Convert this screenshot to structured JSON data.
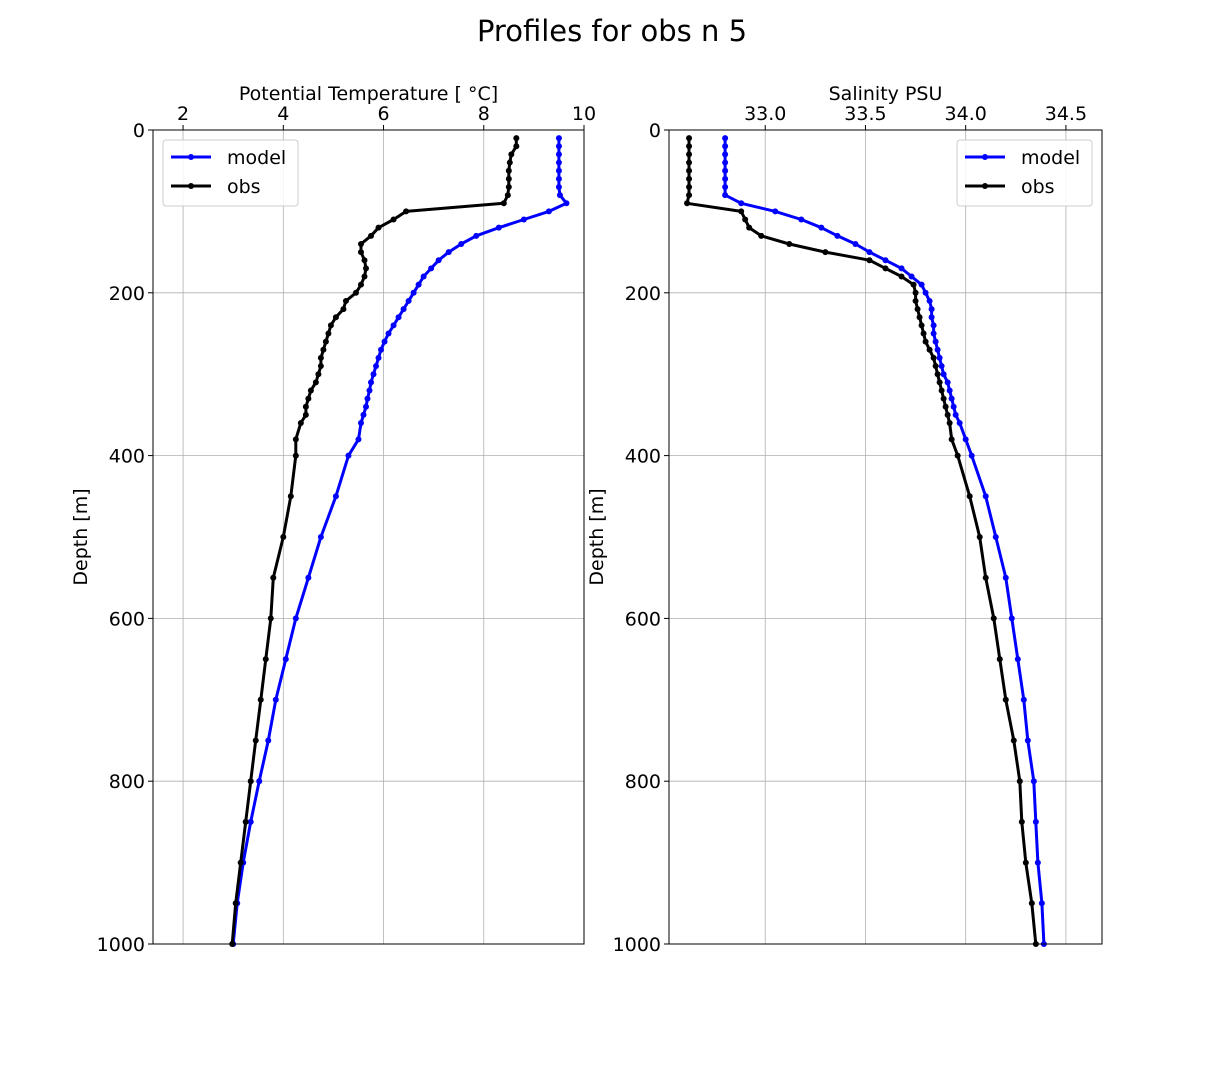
{
  "title": "Profiles for obs n 5",
  "colors": {
    "model": "#0000ff",
    "obs": "#000000",
    "grid": "#b0b0b0"
  },
  "chart_data": [
    {
      "type": "line",
      "title": "",
      "xlabel": "Potential Temperature [$^\\circ$C]",
      "xlabel_display": "Potential Temperature [ °C]",
      "ylabel": "Depth [m]",
      "xlim": [
        1.4,
        10.0
      ],
      "ylim": [
        1000,
        0
      ],
      "y_inverted": true,
      "xaxis_position": "top",
      "xticks": [
        2,
        4,
        6,
        8,
        10
      ],
      "xtick_labels": [
        "2",
        "4",
        "6",
        "8",
        "10"
      ],
      "yticks": [
        0,
        200,
        400,
        600,
        800,
        1000
      ],
      "ytick_labels": [
        "0",
        "200",
        "400",
        "600",
        "800",
        "1000"
      ],
      "grid": true,
      "legend_position": "upper left",
      "series": [
        {
          "name": "model",
          "color": "#0000ff",
          "points": [
            [
              9.5,
              10
            ],
            [
              9.5,
              20
            ],
            [
              9.5,
              30
            ],
            [
              9.5,
              40
            ],
            [
              9.5,
              50
            ],
            [
              9.5,
              60
            ],
            [
              9.5,
              70
            ],
            [
              9.52,
              80
            ],
            [
              9.65,
              90
            ],
            [
              9.3,
              100
            ],
            [
              8.8,
              110
            ],
            [
              8.3,
              120
            ],
            [
              7.85,
              130
            ],
            [
              7.55,
              140
            ],
            [
              7.3,
              150
            ],
            [
              7.1,
              160
            ],
            [
              6.95,
              170
            ],
            [
              6.8,
              180
            ],
            [
              6.7,
              190
            ],
            [
              6.6,
              200
            ],
            [
              6.5,
              210
            ],
            [
              6.4,
              220
            ],
            [
              6.3,
              230
            ],
            [
              6.2,
              240
            ],
            [
              6.1,
              250
            ],
            [
              6.02,
              260
            ],
            [
              5.95,
              270
            ],
            [
              5.9,
              280
            ],
            [
              5.85,
              290
            ],
            [
              5.8,
              300
            ],
            [
              5.75,
              310
            ],
            [
              5.72,
              320
            ],
            [
              5.68,
              330
            ],
            [
              5.65,
              340
            ],
            [
              5.6,
              350
            ],
            [
              5.55,
              360
            ],
            [
              5.5,
              380
            ],
            [
              5.3,
              400
            ],
            [
              5.05,
              450
            ],
            [
              4.75,
              500
            ],
            [
              4.5,
              550
            ],
            [
              4.25,
              600
            ],
            [
              4.05,
              650
            ],
            [
              3.85,
              700
            ],
            [
              3.7,
              750
            ],
            [
              3.52,
              800
            ],
            [
              3.35,
              850
            ],
            [
              3.2,
              900
            ],
            [
              3.08,
              950
            ],
            [
              3.0,
              1000
            ]
          ]
        },
        {
          "name": "obs",
          "color": "#000000",
          "points": [
            [
              8.65,
              10
            ],
            [
              8.65,
              20
            ],
            [
              8.55,
              30
            ],
            [
              8.52,
              40
            ],
            [
              8.5,
              50
            ],
            [
              8.5,
              60
            ],
            [
              8.5,
              70
            ],
            [
              8.48,
              80
            ],
            [
              8.4,
              90
            ],
            [
              6.45,
              100
            ],
            [
              6.2,
              110
            ],
            [
              5.9,
              120
            ],
            [
              5.75,
              130
            ],
            [
              5.55,
              140
            ],
            [
              5.55,
              150
            ],
            [
              5.62,
              160
            ],
            [
              5.65,
              170
            ],
            [
              5.62,
              180
            ],
            [
              5.55,
              190
            ],
            [
              5.45,
              200
            ],
            [
              5.25,
              210
            ],
            [
              5.2,
              220
            ],
            [
              5.05,
              230
            ],
            [
              4.95,
              240
            ],
            [
              4.9,
              250
            ],
            [
              4.85,
              260
            ],
            [
              4.8,
              270
            ],
            [
              4.75,
              280
            ],
            [
              4.75,
              290
            ],
            [
              4.7,
              300
            ],
            [
              4.65,
              310
            ],
            [
              4.55,
              320
            ],
            [
              4.5,
              330
            ],
            [
              4.45,
              340
            ],
            [
              4.45,
              350
            ],
            [
              4.35,
              360
            ],
            [
              4.25,
              380
            ],
            [
              4.25,
              400
            ],
            [
              4.15,
              450
            ],
            [
              4.0,
              500
            ],
            [
              3.8,
              550
            ],
            [
              3.75,
              600
            ],
            [
              3.65,
              650
            ],
            [
              3.55,
              700
            ],
            [
              3.45,
              750
            ],
            [
              3.35,
              800
            ],
            [
              3.25,
              850
            ],
            [
              3.15,
              900
            ],
            [
              3.05,
              950
            ],
            [
              2.98,
              1000
            ]
          ]
        }
      ]
    },
    {
      "type": "line",
      "title": "",
      "xlabel": "Salinity PSU",
      "ylabel": "Depth [m]",
      "xlim": [
        32.52,
        34.68
      ],
      "ylim": [
        1000,
        0
      ],
      "y_inverted": true,
      "xaxis_position": "top",
      "xticks": [
        33.0,
        33.5,
        34.0,
        34.5
      ],
      "xtick_labels": [
        "33.0",
        "33.5",
        "34.0",
        "34.5"
      ],
      "yticks": [
        0,
        200,
        400,
        600,
        800,
        1000
      ],
      "ytick_labels": [
        "0",
        "200",
        "400",
        "600",
        "800",
        "1000"
      ],
      "grid": true,
      "legend_position": "upper right",
      "series": [
        {
          "name": "model",
          "color": "#0000ff",
          "points": [
            [
              32.8,
              10
            ],
            [
              32.8,
              20
            ],
            [
              32.8,
              30
            ],
            [
              32.8,
              40
            ],
            [
              32.8,
              50
            ],
            [
              32.8,
              60
            ],
            [
              32.8,
              70
            ],
            [
              32.8,
              80
            ],
            [
              32.88,
              90
            ],
            [
              33.05,
              100
            ],
            [
              33.18,
              110
            ],
            [
              33.28,
              120
            ],
            [
              33.36,
              130
            ],
            [
              33.45,
              140
            ],
            [
              33.52,
              150
            ],
            [
              33.6,
              160
            ],
            [
              33.68,
              170
            ],
            [
              33.73,
              180
            ],
            [
              33.78,
              190
            ],
            [
              33.8,
              200
            ],
            [
              33.82,
              210
            ],
            [
              33.83,
              220
            ],
            [
              33.83,
              230
            ],
            [
              33.84,
              240
            ],
            [
              33.84,
              250
            ],
            [
              33.85,
              260
            ],
            [
              33.86,
              270
            ],
            [
              33.87,
              280
            ],
            [
              33.88,
              290
            ],
            [
              33.89,
              300
            ],
            [
              33.91,
              310
            ],
            [
              33.92,
              320
            ],
            [
              33.93,
              330
            ],
            [
              33.94,
              340
            ],
            [
              33.95,
              350
            ],
            [
              33.97,
              360
            ],
            [
              34.0,
              380
            ],
            [
              34.03,
              400
            ],
            [
              34.1,
              450
            ],
            [
              34.15,
              500
            ],
            [
              34.2,
              550
            ],
            [
              34.23,
              600
            ],
            [
              34.26,
              650
            ],
            [
              34.29,
              700
            ],
            [
              34.31,
              750
            ],
            [
              34.34,
              800
            ],
            [
              34.35,
              850
            ],
            [
              34.36,
              900
            ],
            [
              34.38,
              950
            ],
            [
              34.39,
              1000
            ]
          ]
        },
        {
          "name": "obs",
          "color": "#000000",
          "points": [
            [
              32.62,
              10
            ],
            [
              32.62,
              20
            ],
            [
              32.62,
              30
            ],
            [
              32.62,
              40
            ],
            [
              32.62,
              50
            ],
            [
              32.62,
              60
            ],
            [
              32.62,
              70
            ],
            [
              32.62,
              80
            ],
            [
              32.61,
              90
            ],
            [
              32.88,
              100
            ],
            [
              32.9,
              110
            ],
            [
              32.92,
              120
            ],
            [
              32.98,
              130
            ],
            [
              33.12,
              140
            ],
            [
              33.3,
              150
            ],
            [
              33.52,
              160
            ],
            [
              33.6,
              170
            ],
            [
              33.68,
              180
            ],
            [
              33.74,
              190
            ],
            [
              33.75,
              200
            ],
            [
              33.75,
              210
            ],
            [
              33.76,
              220
            ],
            [
              33.77,
              230
            ],
            [
              33.78,
              240
            ],
            [
              33.79,
              250
            ],
            [
              33.8,
              260
            ],
            [
              33.82,
              270
            ],
            [
              33.84,
              280
            ],
            [
              33.85,
              290
            ],
            [
              33.86,
              300
            ],
            [
              33.87,
              310
            ],
            [
              33.88,
              320
            ],
            [
              33.89,
              330
            ],
            [
              33.9,
              340
            ],
            [
              33.91,
              350
            ],
            [
              33.92,
              360
            ],
            [
              33.93,
              380
            ],
            [
              33.96,
              400
            ],
            [
              34.02,
              450
            ],
            [
              34.07,
              500
            ],
            [
              34.1,
              550
            ],
            [
              34.14,
              600
            ],
            [
              34.17,
              650
            ],
            [
              34.2,
              700
            ],
            [
              34.24,
              750
            ],
            [
              34.27,
              800
            ],
            [
              34.28,
              850
            ],
            [
              34.3,
              900
            ],
            [
              34.33,
              950
            ],
            [
              34.35,
              1000
            ]
          ]
        }
      ]
    }
  ]
}
